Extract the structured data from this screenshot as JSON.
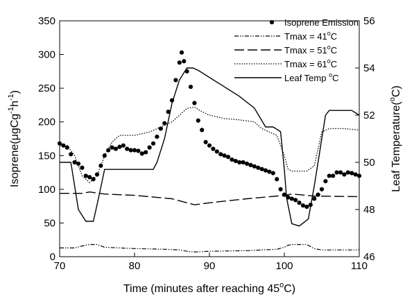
{
  "chart_data": {
    "type": "scatter+line",
    "xlabel": "Time (minutes after reaching 45",
    "xlabel_sup": "o",
    "xlabel_end": "C)",
    "ylabel_left": "Isoprene(μgCg",
    "ylabel_left_sup1": "-1",
    "ylabel_left_mid": "h",
    "ylabel_left_sup2": "-1",
    "ylabel_left_end": ")",
    "ylabel_right": "Leaf Temperature(",
    "ylabel_right_sup": "o",
    "ylabel_right_end": "C)",
    "xlim": [
      70,
      110
    ],
    "ylim_left": [
      0,
      350
    ],
    "ylim_right": [
      46,
      56
    ],
    "x_ticks": [
      "70",
      "80",
      "90",
      "100",
      "110"
    ],
    "y_left_ticks": [
      "0",
      "50",
      "100",
      "150",
      "200",
      "250",
      "300",
      "350"
    ],
    "y_right_ticks": [
      "46",
      "48",
      "50",
      "52",
      "54",
      "56"
    ],
    "legend_position": "top-right",
    "legend": [
      {
        "label": "Isoprene Emission",
        "style": "dot"
      },
      {
        "label": "Tmax = 41",
        "sup": "o",
        "end": "C",
        "style": "dash-dot-dot"
      },
      {
        "label": "Tmax = 51",
        "sup": "o",
        "end": "C",
        "style": "long-dash"
      },
      {
        "label": "Tmax = 61",
        "sup": "o",
        "end": "C",
        "style": "dotted"
      },
      {
        "label": "Leaf Temp ",
        "sup": "o",
        "end": "C",
        "style": "solid"
      }
    ],
    "series": [
      {
        "name": "Isoprene Emission",
        "kind": "scatter",
        "axis": "left",
        "x": [
          70.0,
          70.5,
          71.0,
          71.5,
          72.0,
          72.5,
          73.0,
          73.5,
          74.0,
          74.5,
          75.0,
          75.5,
          76.0,
          76.5,
          77.0,
          77.5,
          78.0,
          78.5,
          79.0,
          79.5,
          80.0,
          80.5,
          81.0,
          81.5,
          82.0,
          82.5,
          83.0,
          83.5,
          84.0,
          84.5,
          85.0,
          85.5,
          86.0,
          86.3,
          86.6,
          87.0,
          87.5,
          88.0,
          88.5,
          89.0,
          89.5,
          90.0,
          90.5,
          91.0,
          91.5,
          92.0,
          92.5,
          93.0,
          93.5,
          94.0,
          94.5,
          95.0,
          95.5,
          96.0,
          96.5,
          97.0,
          97.5,
          98.0,
          98.5,
          99.0,
          99.5,
          100.0,
          100.5,
          101.0,
          101.5,
          102.0,
          102.5,
          103.0,
          103.5,
          104.0,
          104.5,
          105.0,
          105.5,
          106.0,
          106.5,
          107.0,
          107.5,
          108.0,
          108.5,
          109.0,
          109.5,
          110.0
        ],
        "y": [
          168,
          165,
          162,
          152,
          140,
          138,
          132,
          120,
          118,
          115,
          122,
          135,
          150,
          158,
          162,
          160,
          163,
          165,
          160,
          158,
          158,
          157,
          153,
          155,
          162,
          168,
          178,
          190,
          198,
          215,
          232,
          262,
          288,
          303,
          290,
          275,
          252,
          228,
          202,
          188,
          170,
          165,
          160,
          156,
          152,
          150,
          148,
          144,
          142,
          140,
          140,
          138,
          136,
          134,
          132,
          130,
          128,
          126,
          124,
          115,
          100,
          92,
          88,
          86,
          84,
          80,
          76,
          74,
          77,
          86,
          92,
          100,
          112,
          120,
          120,
          125,
          125,
          122,
          125,
          124,
          122,
          120
        ]
      },
      {
        "name": "Tmax = 41°C",
        "kind": "line",
        "axis": "left",
        "x": [
          70,
          72,
          73,
          74,
          75,
          76,
          80,
          84,
          86,
          87,
          88,
          90,
          95,
          99,
          100,
          100.5,
          101,
          103,
          104,
          105,
          110
        ],
        "y": [
          13,
          13,
          16,
          18,
          18,
          14,
          12,
          11,
          10,
          8,
          7,
          8,
          9,
          11,
          14,
          17,
          18,
          18,
          12,
          10,
          10
        ]
      },
      {
        "name": "Tmax = 51°C",
        "kind": "line",
        "axis": "left",
        "x": [
          70,
          73,
          74,
          76,
          80,
          85,
          87,
          88,
          90,
          95,
          100,
          101,
          104,
          110
        ],
        "y": [
          94,
          94,
          96,
          93,
          91,
          86,
          80,
          77,
          80,
          86,
          91,
          93,
          90,
          89
        ]
      },
      {
        "name": "Tmax = 61°C",
        "kind": "line",
        "axis": "left",
        "x": [
          70,
          71,
          72,
          73,
          74,
          75,
          76,
          77,
          78,
          80,
          82,
          84,
          85,
          86,
          87,
          88,
          89,
          90,
          92,
          94,
          96,
          97,
          99,
          100,
          100.5,
          101,
          103,
          104,
          105,
          106,
          108,
          110
        ],
        "y": [
          165,
          165,
          150,
          120,
          110,
          120,
          150,
          170,
          180,
          180,
          185,
          195,
          200,
          210,
          220,
          222,
          215,
          210,
          205,
          203,
          200,
          190,
          180,
          150,
          130,
          127,
          127,
          135,
          185,
          190,
          190,
          188
        ]
      },
      {
        "name": "Leaf Temp °C",
        "kind": "line",
        "axis": "right",
        "x": [
          70,
          71.5,
          72.5,
          73.5,
          74.5,
          75.2,
          76.0,
          80.0,
          82.5,
          83.0,
          84.0,
          85.0,
          86.0,
          87.0,
          87.8,
          88.5,
          90.0,
          92.0,
          94.0,
          96.0,
          97.5,
          98.5,
          99.5,
          100.0,
          100.3,
          101.0,
          102.0,
          103.2,
          104.0,
          104.5,
          105.0,
          105.5,
          106.0,
          108.0,
          109.0,
          110.0
        ],
        "y": [
          50.0,
          50.0,
          48.0,
          47.5,
          47.5,
          48.5,
          49.7,
          49.7,
          49.7,
          50.0,
          51.0,
          52.5,
          53.5,
          54.0,
          54.0,
          53.9,
          53.6,
          53.2,
          52.8,
          52.3,
          51.5,
          51.5,
          51.3,
          49.7,
          48.5,
          47.4,
          47.3,
          47.6,
          49.0,
          50.0,
          51.0,
          52.0,
          52.2,
          52.2,
          52.2,
          52.0
        ]
      }
    ]
  }
}
